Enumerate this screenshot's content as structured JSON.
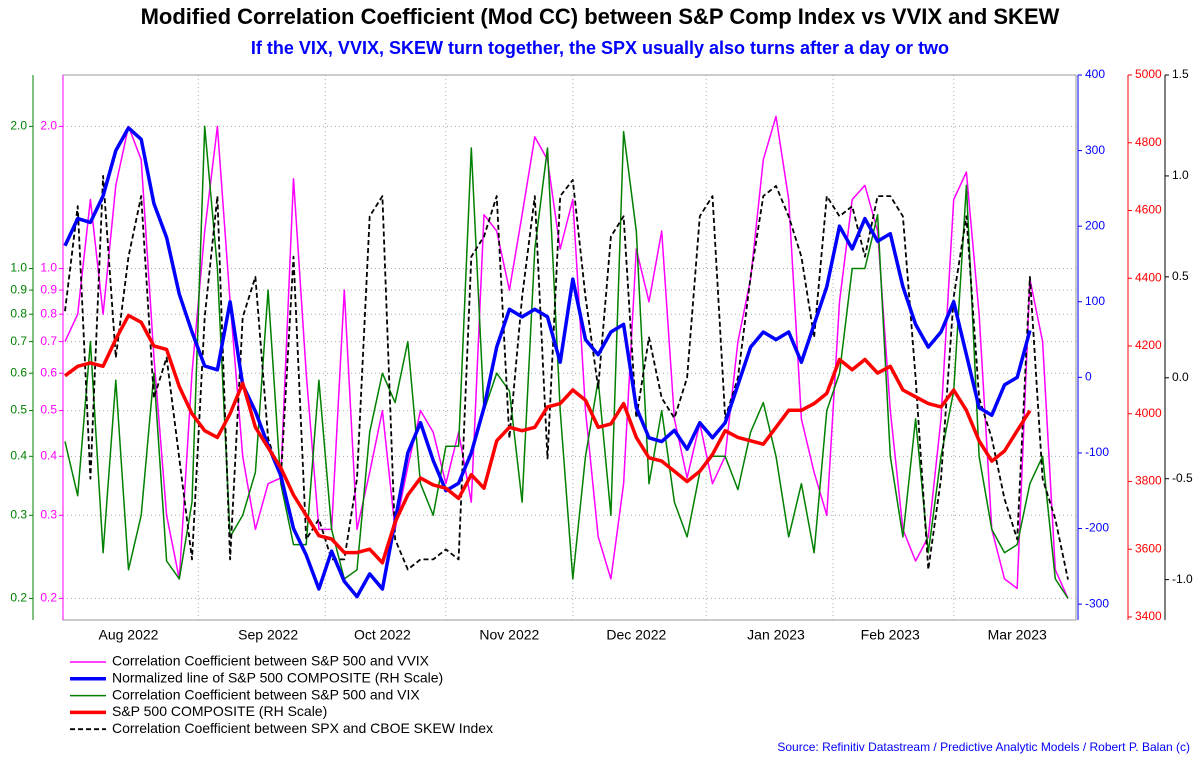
{
  "chart_data": {
    "type": "line",
    "title": "Modified Correlation Coefficient (Mod CC) between S&P Comp Index vs VVIX and SKEW",
    "subtitle": "If the VIX, VVIX, SKEW turn together, the SPX usually also turns after a day or two",
    "source": "Source: Refinitiv Datastream / Predictive Analytic Models / Robert P. Balan (c)",
    "categories": [
      null,
      null,
      null,
      null,
      null,
      "Aug 2022",
      null,
      null,
      null,
      null,
      null,
      null,
      null,
      null,
      null,
      null,
      "Sep 2022",
      null,
      null,
      null,
      null,
      null,
      null,
      null,
      null,
      "Oct 2022",
      null,
      null,
      null,
      null,
      null,
      null,
      null,
      null,
      null,
      "Nov 2022",
      null,
      null,
      null,
      null,
      null,
      null,
      null,
      null,
      null,
      "Dec 2022",
      null,
      null,
      null,
      null,
      null,
      null,
      null,
      null,
      null,
      null,
      "Jan 2023",
      null,
      null,
      null,
      null,
      null,
      null,
      null,
      null,
      "Feb 2023",
      null,
      null,
      null,
      null,
      null,
      null,
      null,
      null,
      null,
      "Mar 2023",
      null,
      null,
      null,
      null
    ],
    "ylog": true,
    "ylim": [
      0.18,
      2.57
    ],
    "yticks": [
      {
        "value": 2,
        "label": "2.0"
      },
      {
        "value": 1,
        "label": "1.0"
      },
      0.9,
      0.8,
      0.7,
      0.6,
      0.5,
      0.4,
      0.3,
      0.2
    ],
    "y2lim": [
      -321,
      400
    ],
    "y2ticks": [
      400,
      300,
      200,
      100,
      0,
      -100,
      -200,
      -300
    ],
    "y3lim": [
      3391,
      5000
    ],
    "y3ticks": [
      5000,
      4800,
      4600,
      4400,
      4200,
      4000,
      3800,
      3600,
      3400
    ],
    "y4lim": [
      -1.2,
      1.5
    ],
    "y4ticks": [
      1.5,
      {
        "value": 1,
        "label": "1.0"
      },
      0.5,
      {
        "value": 0,
        "label": "0.0"
      },
      -0.5,
      {
        "value": -1,
        "label": "-1.0"
      }
    ],
    "grid": true,
    "legend": "bottom-left",
    "series": [
      {
        "name": "Correlation Coefficient between S&P 500 and VVIX",
        "color": "#ff00ff",
        "axis": "y",
        "width": 1.5,
        "values": [
          0.7,
          0.8,
          1.4,
          0.8,
          1.5,
          2.0,
          1.7,
          0.65,
          0.3,
          0.22,
          0.6,
          1.2,
          2.0,
          0.85,
          0.4,
          0.28,
          0.35,
          0.36,
          1.55,
          0.6,
          0.28,
          0.28,
          0.9,
          0.28,
          0.37,
          0.5,
          0.28,
          0.38,
          0.5,
          0.45,
          0.35,
          0.45,
          0.32,
          1.3,
          1.2,
          0.9,
          1.3,
          1.9,
          1.7,
          1.1,
          1.4,
          0.5,
          0.27,
          0.22,
          0.35,
          1.1,
          0.85,
          1.2,
          0.48,
          0.36,
          0.47,
          0.35,
          0.4,
          0.7,
          0.95,
          1.7,
          2.1,
          1.4,
          0.48,
          0.37,
          0.3,
          0.85,
          1.4,
          1.5,
          1.2,
          0.5,
          0.28,
          0.24,
          0.27,
          0.48,
          1.4,
          1.6,
          0.8,
          0.28,
          0.22,
          0.21,
          0.95,
          0.7,
          0.23,
          0.2
        ]
      },
      {
        "name": "Normalized line of S&P 500 COMPOSITE (RH Scale)",
        "color": "#0000ff",
        "axis": "y2",
        "width": 3.5,
        "values": [
          174,
          210,
          205,
          240,
          300,
          330,
          315,
          230,
          185,
          110,
          60,
          15,
          10,
          100,
          -10,
          -45,
          -90,
          -130,
          -200,
          -235,
          -280,
          -230,
          -270,
          -290,
          -260,
          -280,
          -190,
          -100,
          -60,
          -110,
          -150,
          -140,
          -100,
          -40,
          40,
          90,
          80,
          90,
          80,
          20,
          130,
          50,
          30,
          60,
          70,
          -40,
          -80,
          -85,
          -70,
          -95,
          -60,
          -80,
          -60,
          -10,
          40,
          60,
          50,
          60,
          20,
          70,
          120,
          200,
          170,
          210,
          180,
          190,
          120,
          70,
          40,
          60,
          100,
          30,
          -40,
          -50,
          -10,
          0,
          62,
          null,
          null,
          null
        ]
      },
      {
        "name": "Correlation Coefficient between S&P 500 and VIX",
        "color": "#008000",
        "axis": "y",
        "width": 1.5,
        "values": [
          0.43,
          0.33,
          0.7,
          0.25,
          0.58,
          0.23,
          0.3,
          0.6,
          0.24,
          0.22,
          0.32,
          2.0,
          1.0,
          0.27,
          0.3,
          0.37,
          0.9,
          0.35,
          0.26,
          0.26,
          0.58,
          0.28,
          0.22,
          0.23,
          0.45,
          0.6,
          0.52,
          0.7,
          0.35,
          0.3,
          0.42,
          0.42,
          1.8,
          0.5,
          0.6,
          0.55,
          0.32,
          1.1,
          1.8,
          0.5,
          0.22,
          0.4,
          0.58,
          0.3,
          1.95,
          1.2,
          0.35,
          0.5,
          0.32,
          0.27,
          0.37,
          0.4,
          0.4,
          0.34,
          0.45,
          0.52,
          0.4,
          0.27,
          0.35,
          0.25,
          0.5,
          0.6,
          1.0,
          1.0,
          1.3,
          0.4,
          0.27,
          0.48,
          0.25,
          0.4,
          0.55,
          1.5,
          0.4,
          0.28,
          0.25,
          0.26,
          0.35,
          0.4,
          0.22,
          0.2
        ]
      },
      {
        "name": "S&P 500 COMPOSITE (RH Scale)",
        "color": "#ff0000",
        "axis": "y3",
        "width": 3.5,
        "values": [
          4112,
          4140,
          4150,
          4140,
          4220,
          4290,
          4270,
          4200,
          4190,
          4080,
          4000,
          3950,
          3930,
          4000,
          4090,
          3960,
          3900,
          3840,
          3760,
          3700,
          3640,
          3630,
          3590,
          3590,
          3600,
          3560,
          3680,
          3760,
          3810,
          3790,
          3780,
          3750,
          3820,
          3780,
          3920,
          3960,
          3950,
          3960,
          4020,
          4030,
          4070,
          4040,
          3960,
          3970,
          4030,
          3930,
          3870,
          3860,
          3830,
          3800,
          3830,
          3880,
          3950,
          3930,
          3920,
          3910,
          3960,
          4010,
          4010,
          4030,
          4060,
          4160,
          4130,
          4160,
          4120,
          4140,
          4070,
          4050,
          4030,
          4020,
          4070,
          4010,
          3920,
          3860,
          3890,
          3950,
          4009,
          null,
          null,
          null
        ]
      },
      {
        "name": "Correlation Coefficient between SPX and CBOE SKEW Index",
        "color": "#000000",
        "axis": "y4",
        "width": 1.8,
        "dash": true,
        "values": [
          0.33,
          0.85,
          -0.5,
          1.0,
          0.1,
          0.6,
          0.9,
          -0.1,
          0.1,
          -0.4,
          -0.9,
          0.3,
          0.9,
          -0.9,
          0.3,
          0.5,
          -0.3,
          -0.5,
          0.6,
          -0.8,
          -0.7,
          -0.9,
          -0.9,
          -0.5,
          0.8,
          0.9,
          -0.8,
          -0.95,
          -0.9,
          -0.9,
          -0.85,
          -0.9,
          0.6,
          0.7,
          0.9,
          -0.3,
          0.4,
          0.9,
          -0.4,
          0.9,
          0.98,
          0.4,
          -0.05,
          0.7,
          0.8,
          -0.2,
          0.2,
          -0.1,
          -0.2,
          0.0,
          0.8,
          0.9,
          -0.2,
          0.0,
          0.5,
          0.9,
          0.95,
          0.8,
          0.6,
          0.2,
          0.9,
          0.8,
          0.85,
          0.6,
          0.9,
          0.9,
          0.8,
          0.0,
          -0.95,
          -0.5,
          0.4,
          0.8,
          -0.1,
          -0.3,
          -0.6,
          -0.8,
          0.5,
          -0.5,
          -0.7,
          -1.0
        ]
      }
    ]
  }
}
